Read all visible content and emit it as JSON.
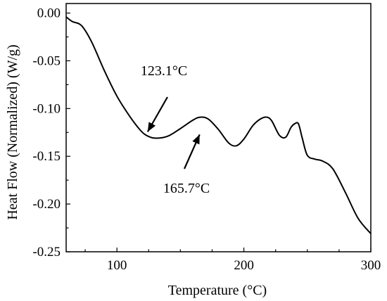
{
  "chart_data": {
    "type": "line",
    "title": "",
    "xlabel": "Temperature (°C)",
    "ylabel": "Heat Flow (Normalized) (W/g)",
    "xlim": [
      60,
      300
    ],
    "ylim": [
      -0.25,
      0.01
    ],
    "x_ticks": [
      100,
      200,
      300
    ],
    "x_tick_labels": [
      "100",
      "200",
      "300"
    ],
    "y_ticks": [
      0.0,
      -0.05,
      -0.1,
      -0.15,
      -0.2,
      -0.25
    ],
    "y_tick_labels": [
      "0.00",
      "-0.05",
      "-0.10",
      "-0.15",
      "-0.20",
      "-0.25"
    ],
    "grid": false,
    "legend": "none",
    "line_color": "#000000",
    "series": [
      {
        "x": [
          60,
          65,
          72,
          80,
          90,
          100,
          110,
          118,
          123.1,
          130,
          140,
          150,
          160,
          165.7,
          172,
          180,
          188,
          194,
          200,
          207,
          213,
          218,
          222,
          228,
          233,
          237,
          240,
          243,
          246,
          250,
          256,
          262,
          270,
          280,
          290,
          300
        ],
        "y": [
          -0.004,
          -0.009,
          -0.013,
          -0.03,
          -0.06,
          -0.087,
          -0.108,
          -0.122,
          -0.128,
          -0.131,
          -0.129,
          -0.121,
          -0.112,
          -0.109,
          -0.111,
          -0.122,
          -0.136,
          -0.139,
          -0.132,
          -0.118,
          -0.111,
          -0.109,
          -0.113,
          -0.128,
          -0.13,
          -0.12,
          -0.116,
          -0.116,
          -0.131,
          -0.149,
          -0.153,
          -0.155,
          -0.163,
          -0.188,
          -0.215,
          -0.231
        ]
      }
    ],
    "annotations": [
      {
        "text": "123.1°C",
        "x": 123.1,
        "y": -0.128
      },
      {
        "text": "165.7°C",
        "x": 165.7,
        "y": -0.125
      }
    ]
  }
}
